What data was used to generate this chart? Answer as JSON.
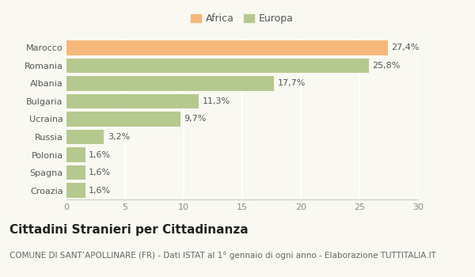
{
  "categories": [
    "Croazia",
    "Spagna",
    "Polonia",
    "Russia",
    "Ucraina",
    "Bulgaria",
    "Albania",
    "Romania",
    "Marocco"
  ],
  "values": [
    1.6,
    1.6,
    1.6,
    3.2,
    9.7,
    11.3,
    17.7,
    25.8,
    27.4
  ],
  "colors": [
    "#b5c98e",
    "#b5c98e",
    "#b5c98e",
    "#b5c98e",
    "#b5c98e",
    "#b5c98e",
    "#b5c98e",
    "#b5c98e",
    "#f5b87a"
  ],
  "labels": [
    "1,6%",
    "1,6%",
    "1,6%",
    "3,2%",
    "9,7%",
    "11,3%",
    "17,7%",
    "25,8%",
    "27,4%"
  ],
  "xlim": [
    0,
    30
  ],
  "xticks": [
    0,
    5,
    10,
    15,
    20,
    25,
    30
  ],
  "title": "Cittadini Stranieri per Cittadinanza",
  "subtitle": "COMUNE DI SANT’APOLLINARE (FR) - Dati ISTAT al 1° gennaio di ogni anno - Elaborazione TUTTITALIA.IT",
  "legend_africa_color": "#f5b87a",
  "legend_europa_color": "#b5c98e",
  "background_color": "#f9f9f2",
  "bar_height": 0.82,
  "title_fontsize": 11,
  "subtitle_fontsize": 7.5,
  "label_fontsize": 8,
  "tick_fontsize": 8,
  "legend_fontsize": 9
}
